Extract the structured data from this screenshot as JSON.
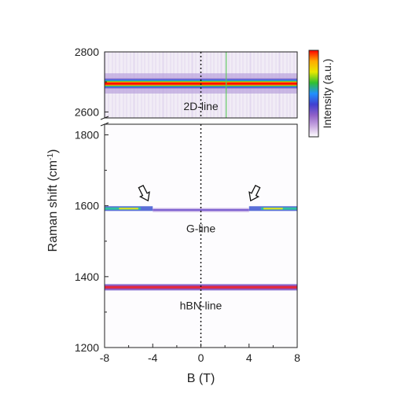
{
  "chart_data": {
    "type": "heatmap",
    "title": "",
    "xlabel": "B (T)",
    "ylabel": "Raman shift (cm⁻¹)",
    "ylabel_main": "Raman shift (cm",
    "ylabel_sup": "-1",
    "ylabel_close": ")",
    "xlim": [
      -8,
      8
    ],
    "xticks": [
      -8,
      -4,
      0,
      4,
      8
    ],
    "upper_panel": {
      "ylim": [
        2580,
        2800
      ],
      "yticks": [
        2600,
        2800
      ],
      "line_label": "2D-line",
      "band": {
        "center": 2695,
        "half_width": 18
      }
    },
    "lower_panel": {
      "ylim": [
        1200,
        1830
      ],
      "yticks": [
        1200,
        1400,
        1600,
        1800
      ],
      "lines": [
        {
          "name": "G-line",
          "label": "G-line",
          "y_outer": 1592,
          "y_inner": 1588,
          "anticrossing_B": [
            -4,
            4
          ]
        },
        {
          "name": "hBN-line",
          "label": "hBN-line",
          "y": 1370
        }
      ],
      "arrows_at_B": [
        -4,
        4
      ]
    },
    "zero_line_B": 0,
    "colorbar": {
      "label": "Intensity (a.u.)",
      "colors": [
        "#ff0000",
        "#ffaa00",
        "#e8e800",
        "#30c030",
        "#2090ff",
        "#4040d0",
        "#9060c8",
        "#c8a8e0",
        "#ffffff"
      ]
    },
    "legend": "none",
    "grid": false
  }
}
